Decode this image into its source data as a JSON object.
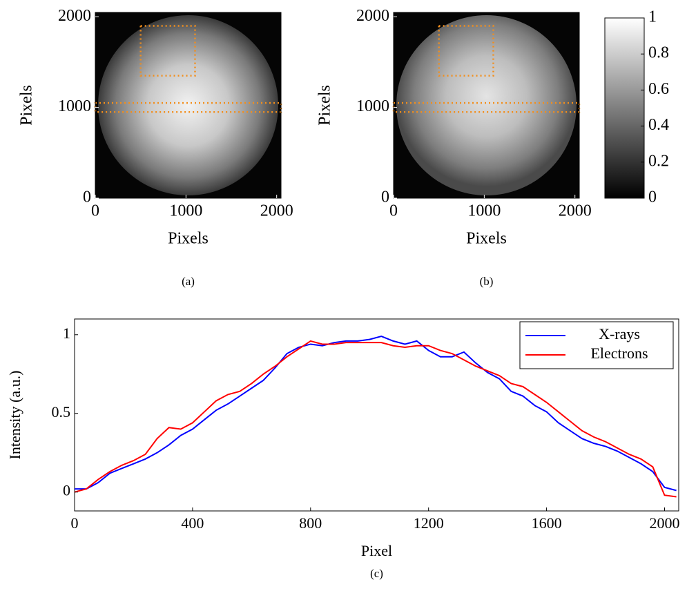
{
  "chart_data": [
    {
      "type": "image",
      "xlabel": "Pixels",
      "ylabel": "Pixels",
      "caption": "(a)",
      "xlim": [
        0,
        2048
      ],
      "ylim": [
        0,
        2048
      ],
      "xticks": [
        0,
        1000,
        2000
      ],
      "yticks": [
        0,
        1000,
        2000
      ],
      "region_color": "#f28e1c",
      "regions": [
        {
          "xlim": [
            500,
            1100
          ],
          "ylim": [
            1350,
            1900
          ]
        },
        {
          "xlim": [
            0,
            2048
          ],
          "ylim": [
            950,
            1050
          ]
        }
      ]
    },
    {
      "type": "image",
      "xlabel": "Pixels",
      "ylabel": "Pixels",
      "caption": "(b)",
      "xlim": [
        0,
        2048
      ],
      "ylim": [
        0,
        2048
      ],
      "xticks": [
        0,
        1000,
        2000
      ],
      "yticks": [
        0,
        1000,
        2000
      ],
      "region_color": "#f28e1c",
      "regions": [
        {
          "xlim": [
            500,
            1100
          ],
          "ylim": [
            1350,
            1900
          ]
        },
        {
          "xlim": [
            0,
            2048
          ],
          "ylim": [
            950,
            1050
          ]
        }
      ]
    },
    {
      "type": "colorbar",
      "ylim": [
        0,
        1
      ],
      "yticks": [
        0,
        0.2,
        0.4,
        0.6,
        0.8,
        1
      ],
      "colors": [
        "#000000",
        "#ffffff"
      ]
    },
    {
      "type": "line",
      "xlabel": "Pixel",
      "ylabel": "Intensity (a.u.)",
      "caption": "(c)",
      "xlim": [
        0,
        2048
      ],
      "ylim": [
        -0.12,
        1.1
      ],
      "xticks": [
        0,
        400,
        800,
        1200,
        1600,
        2000
      ],
      "yticks": [
        0,
        0.5,
        1
      ],
      "legend": "upper right",
      "x": [
        0,
        40,
        80,
        120,
        160,
        200,
        240,
        280,
        320,
        360,
        400,
        440,
        480,
        520,
        560,
        600,
        640,
        680,
        720,
        760,
        800,
        840,
        880,
        920,
        960,
        1000,
        1040,
        1080,
        1120,
        1160,
        1200,
        1240,
        1280,
        1320,
        1360,
        1400,
        1440,
        1480,
        1520,
        1560,
        1600,
        1640,
        1680,
        1720,
        1760,
        1800,
        1840,
        1880,
        1920,
        1960,
        2000,
        2040
      ],
      "series": [
        {
          "name": "X-rays",
          "color": "#0000ff",
          "values": [
            0.02,
            0.02,
            0.06,
            0.12,
            0.15,
            0.18,
            0.21,
            0.25,
            0.3,
            0.36,
            0.4,
            0.46,
            0.52,
            0.56,
            0.61,
            0.66,
            0.71,
            0.79,
            0.88,
            0.92,
            0.94,
            0.93,
            0.95,
            0.96,
            0.96,
            0.97,
            0.99,
            0.96,
            0.94,
            0.96,
            0.9,
            0.86,
            0.86,
            0.89,
            0.82,
            0.76,
            0.72,
            0.64,
            0.61,
            0.55,
            0.51,
            0.44,
            0.39,
            0.34,
            0.31,
            0.29,
            0.26,
            0.22,
            0.18,
            0.13,
            0.03,
            0.01
          ]
        },
        {
          "name": "Electrons",
          "color": "#ff0000",
          "values": [
            0,
            0.02,
            0.08,
            0.13,
            0.17,
            0.2,
            0.24,
            0.34,
            0.41,
            0.4,
            0.44,
            0.51,
            0.58,
            0.62,
            0.64,
            0.69,
            0.75,
            0.8,
            0.86,
            0.91,
            0.96,
            0.94,
            0.94,
            0.95,
            0.95,
            0.95,
            0.95,
            0.93,
            0.92,
            0.93,
            0.93,
            0.9,
            0.88,
            0.84,
            0.8,
            0.77,
            0.74,
            0.69,
            0.67,
            0.62,
            0.57,
            0.51,
            0.45,
            0.39,
            0.35,
            0.32,
            0.28,
            0.24,
            0.21,
            0.16,
            -0.02,
            -0.03
          ]
        }
      ]
    }
  ]
}
